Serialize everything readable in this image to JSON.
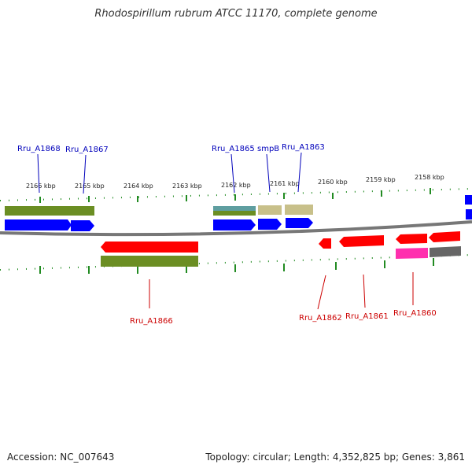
{
  "title": "Rhodospirillum rubrum ATCC 11170, complete genome",
  "footer": {
    "accession": "Accession: NC_007643",
    "summary": "Topology: circular; Length: 4,352,825 bp; Genes: 3,861"
  },
  "colors": {
    "forward_gene": "#0000ff",
    "reverse_gene": "#ff0000",
    "forward_label": "#0000bb",
    "reverse_label": "#cc0000",
    "cds_feature": "#6b8e23",
    "misc_feature": "#c8c08a",
    "rna_feature": "#5f9ea0",
    "highlight_feature": "#ff2fae",
    "grey_feature": "#666666",
    "tick": "#228b22",
    "backbone": "#777777"
  },
  "scale_labels": [
    "2166 kbp",
    "2165 kbp",
    "2164 kbp",
    "2163 kbp",
    "2162 kbp",
    "2161 kbp",
    "2160 kbp",
    "2159 kbp",
    "2158 kbp"
  ],
  "forward_genes": [
    {
      "name": "Rru_A1868",
      "label": "Rru_A1868"
    },
    {
      "name": "Rru_A1867",
      "label": "Rru_A1867"
    },
    {
      "name": "Rru_A1865",
      "label": "Rru_A1865"
    },
    {
      "name": "smpB",
      "label": "smpB"
    },
    {
      "name": "Rru_A1863",
      "label": "Rru_A1863"
    }
  ],
  "reverse_genes": [
    {
      "name": "Rru_A1866",
      "label": "Rru_A1866"
    },
    {
      "name": "Rru_A1862",
      "label": "Rru_A1862"
    },
    {
      "name": "Rru_A1861",
      "label": "Rru_A1861"
    },
    {
      "name": "Rru_A1860",
      "label": "Rru_A1860"
    }
  ]
}
